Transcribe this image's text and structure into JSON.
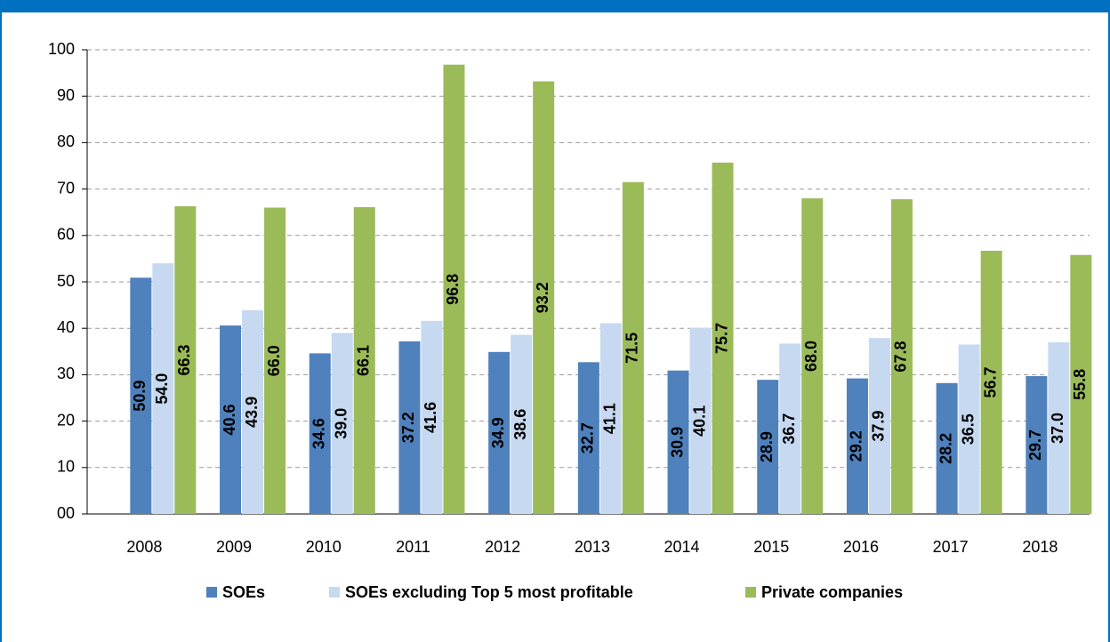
{
  "chart_data": {
    "type": "bar",
    "categories": [
      "2008",
      "2009",
      "2010",
      "2011",
      "2012",
      "2013",
      "2014",
      "2015",
      "2016",
      "2017",
      "2018"
    ],
    "series": [
      {
        "name": "SOEs",
        "color": "#4f81bd",
        "values": [
          50.9,
          40.6,
          34.6,
          37.2,
          34.9,
          32.7,
          30.9,
          28.9,
          29.2,
          28.2,
          29.7
        ],
        "value_labels": [
          "50.9",
          "40.6",
          "34.6",
          "37.2",
          "34.9",
          "32.7",
          "30.9",
          "28.9",
          "29.2",
          "28.2",
          "29.7"
        ]
      },
      {
        "name": "SOEs excluding Top 5 most profitable",
        "color": "#c6d9f1",
        "values": [
          54.0,
          43.9,
          39.0,
          41.6,
          38.6,
          41.1,
          40.1,
          36.7,
          37.9,
          36.5,
          37.0
        ],
        "value_labels": [
          "54.0",
          "43.9",
          "39.0",
          "41.6",
          "38.6",
          "41.1",
          "40.1",
          "36.7",
          "37.9",
          "36.5",
          "37.0"
        ]
      },
      {
        "name": "Private companies",
        "color": "#9bbb59",
        "values": [
          66.3,
          66.0,
          66.1,
          96.8,
          93.2,
          71.5,
          75.7,
          68.0,
          67.8,
          56.7,
          55.8
        ],
        "value_labels": [
          "66.3",
          "66.0",
          "66.1",
          "96.8",
          "93.2",
          "71.5",
          "75.7",
          "68.0",
          "67.8",
          "56.7",
          "55.8"
        ]
      }
    ],
    "ylim": [
      0,
      100
    ],
    "yticks": [
      {
        "value": 0,
        "label": "00"
      },
      10,
      20,
      30,
      40,
      50,
      60,
      70,
      80,
      90,
      100
    ],
    "grid": true,
    "legend": "bottom"
  }
}
